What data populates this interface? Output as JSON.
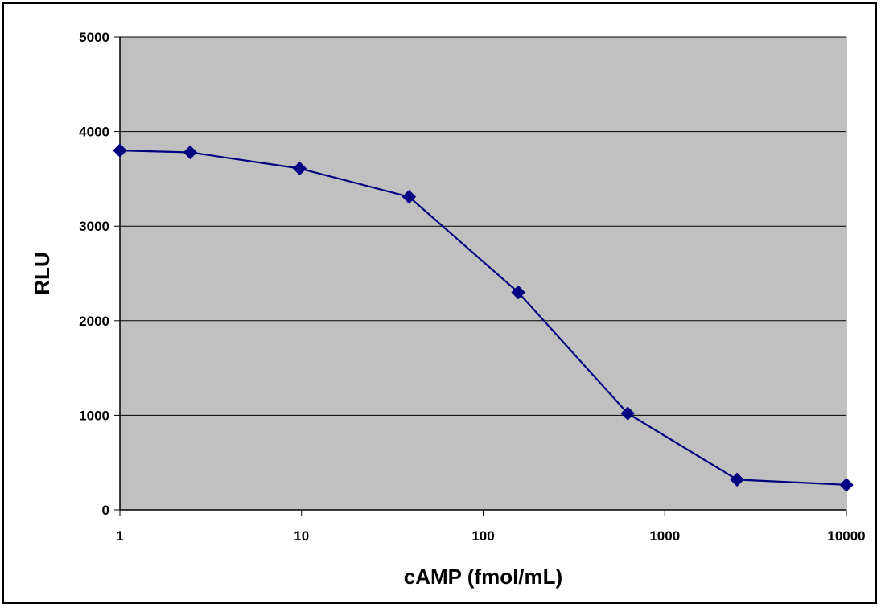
{
  "chart_data": {
    "type": "line",
    "title": "",
    "xlabel": "cAMP (fmol/mL)",
    "ylabel": "RLU",
    "x_scale": "log",
    "xlim": [
      1,
      10000
    ],
    "ylim": [
      0,
      5000
    ],
    "x_ticks": [
      "1",
      "10",
      "100",
      "1000",
      "10000"
    ],
    "y_ticks": [
      "0",
      "1000",
      "2000",
      "3000",
      "4000",
      "5000"
    ],
    "grid": "horizontal",
    "legend": "none",
    "series": [
      {
        "x": [
          1,
          2.44,
          9.77,
          39.1,
          156,
          625,
          2500,
          10000
        ],
        "y": [
          3800,
          3780,
          3610,
          3310,
          2300,
          1020,
          320,
          265
        ]
      }
    ],
    "colors": {
      "plot_background": "#c0c0c0",
      "line": "#000080",
      "marker": "#000080",
      "gridline": "#000000"
    },
    "marker": "diamond-icon"
  }
}
